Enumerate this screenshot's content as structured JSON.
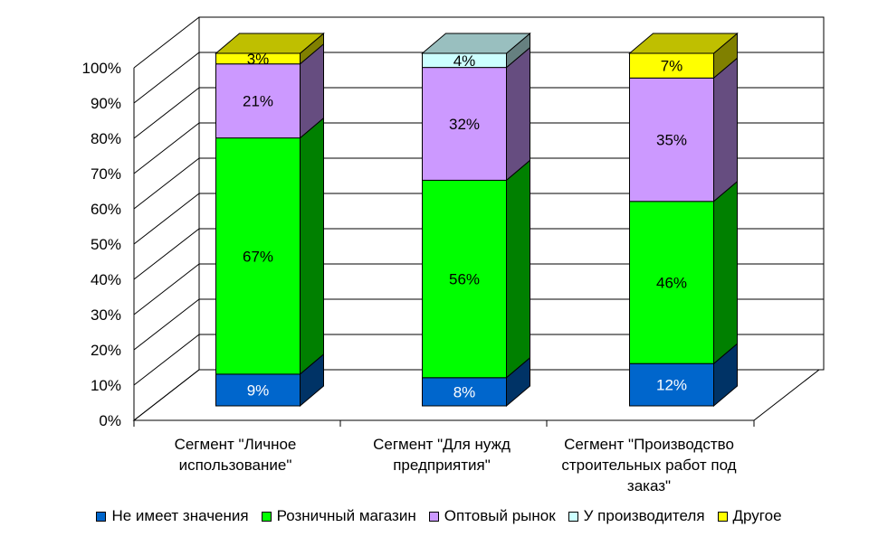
{
  "chart_data": {
    "type": "bar",
    "stacked": true,
    "percent": true,
    "three_d": true,
    "title": "",
    "xlabel": "",
    "ylabel": "",
    "ylim": [
      0,
      100
    ],
    "y_ticks": [
      "0%",
      "10%",
      "20%",
      "30%",
      "40%",
      "50%",
      "60%",
      "70%",
      "80%",
      "90%",
      "100%"
    ],
    "grid": true,
    "legend_position": "bottom",
    "categories": [
      [
        "Сегмент \"Личное",
        "использование\""
      ],
      [
        "Сегмент \"Для нужд",
        "предприятия\""
      ],
      [
        "Сегмент \"Производство",
        "строительных работ под",
        "заказ\""
      ]
    ],
    "series": [
      {
        "name": "Не имеет значения",
        "values": [
          9,
          8,
          12
        ],
        "labels": [
          "9%",
          "8%",
          "12%"
        ],
        "color": "#0066CC",
        "label_color": "#FFFFFF"
      },
      {
        "name": "Розничный магазин",
        "values": [
          67,
          56,
          46
        ],
        "labels": [
          "67%",
          "56%",
          "46%"
        ],
        "color": "#00FF00",
        "label_color": "#000000"
      },
      {
        "name": "Оптовый рынок",
        "values": [
          21,
          32,
          35
        ],
        "labels": [
          "21%",
          "32%",
          "35%"
        ],
        "color": "#CC99FF",
        "label_color": "#000000"
      },
      {
        "name": "У производителя",
        "values": [
          0,
          4,
          0
        ],
        "labels": [
          "",
          "4%",
          ""
        ],
        "color": "#CCFFFF",
        "label_color": "#000000"
      },
      {
        "name": "Другое",
        "values": [
          3,
          0,
          7
        ],
        "labels": [
          "3%",
          "",
          "7%"
        ],
        "color": "#FFFF00",
        "label_color": "#000000"
      }
    ]
  }
}
